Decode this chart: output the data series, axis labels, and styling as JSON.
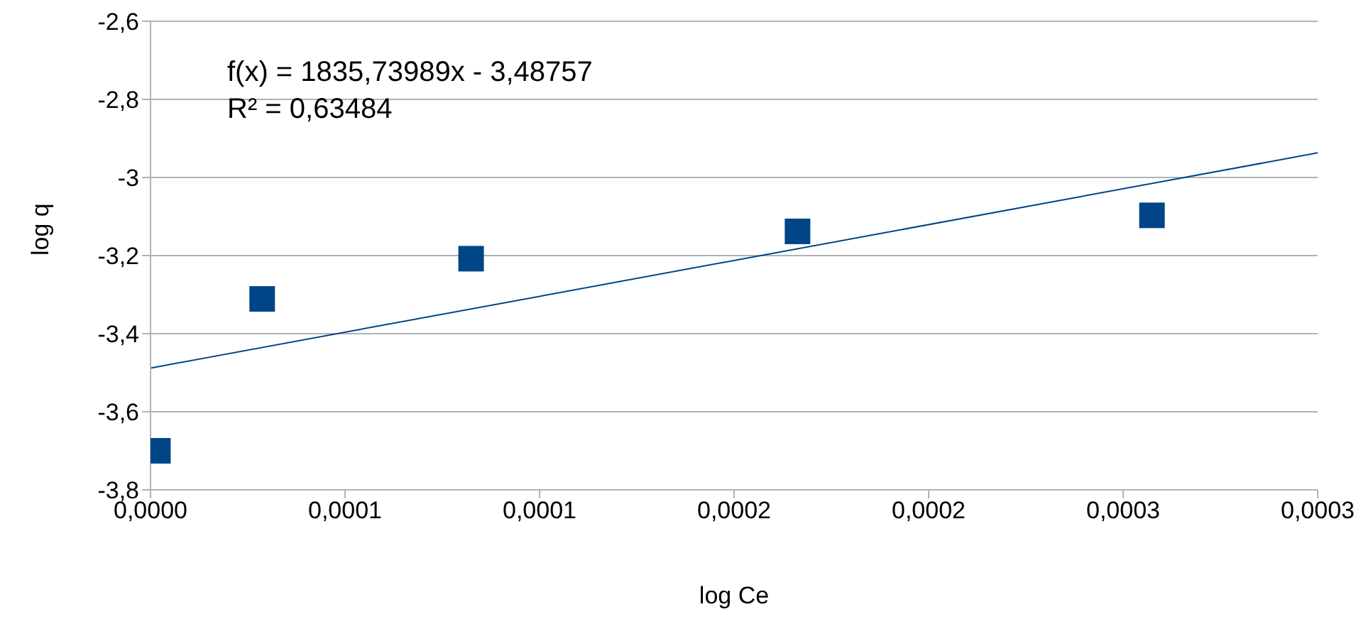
{
  "chart_data": {
    "type": "scatter",
    "xlabel": "log Ce",
    "ylabel": "log q",
    "annotations": [
      "f(x) = 1835,73989x - 3,48757",
      "R² = 0,63484"
    ],
    "series": [
      {
        "color": "#004586",
        "marker": "square",
        "x": [
          1.9e-06,
          2.87e-05,
          8.24e-05,
          0.0001663,
          0.0002574
        ],
        "values": [
          -3.7,
          -3.311,
          -3.208,
          -3.138,
          -3.097
        ]
      },
      {
        "type": "line",
        "color": "#004586",
        "marker": "none",
        "x": [
          0,
          0.0003
        ],
        "values": [
          -3.488,
          -2.937
        ]
      }
    ],
    "xlim": [
      0,
      0.0003
    ],
    "xticks": [
      {
        "value": 0,
        "label": "0,0000"
      },
      {
        "value": 5e-05,
        "label": "0,0001"
      },
      {
        "value": 0.0001,
        "label": "0,0001"
      },
      {
        "value": 0.00015,
        "label": "0,0002"
      },
      {
        "value": 0.0002,
        "label": "0,0002"
      },
      {
        "value": 0.00025,
        "label": "0,0003"
      },
      {
        "value": 0.0003,
        "label": "0,0003"
      }
    ],
    "ylim": [
      -3.8,
      -2.6
    ],
    "yticks": [
      {
        "value": -3.8,
        "label": "-3,8"
      },
      {
        "value": -3.6,
        "label": "-3,6"
      },
      {
        "value": -3.4,
        "label": "-3,4"
      },
      {
        "value": -3.2,
        "label": "-3,2"
      },
      {
        "value": -3,
        "label": "-3"
      },
      {
        "value": -2.8,
        "label": "-2,8"
      },
      {
        "value": -2.6,
        "label": "-2,6"
      }
    ],
    "grid": "y",
    "legend": false
  }
}
